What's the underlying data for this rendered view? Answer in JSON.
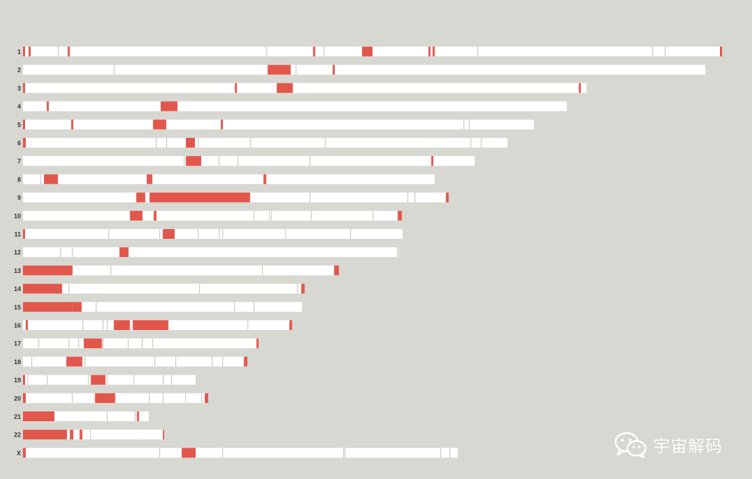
{
  "colors": {
    "background": "#d8d8d2",
    "chromosome": "#ffffff",
    "region": "#e2574c",
    "separator": "#c8c8c2",
    "label": "#333333"
  },
  "watermark": {
    "icon": "wechat-icon",
    "text": "宇宙解码"
  },
  "chart_data": {
    "type": "ideogram",
    "units": "fraction of the longest chromosome (1)",
    "chromosomes": [
      {
        "label": "1",
        "length": 1.0,
        "regions": [
          [
            0,
            0.003
          ],
          [
            0.008,
            0.011
          ],
          [
            0.064,
            0.067
          ],
          [
            0.415,
            0.418
          ],
          [
            0.485,
            0.5
          ],
          [
            0.58,
            0.583
          ],
          [
            0.586,
            0.589
          ],
          [
            0.997,
            1.0
          ]
        ],
        "separators": [
          0.05,
          0.348,
          0.43,
          0.65,
          0.9,
          0.918
        ]
      },
      {
        "label": "2",
        "length": 0.976,
        "regions": [
          [
            0.35,
            0.383
          ],
          [
            0.443,
            0.446
          ]
        ],
        "separators": [
          0.13,
          0.39
        ]
      },
      {
        "label": "3",
        "length": 0.806,
        "regions": [
          [
            0,
            0.003
          ],
          [
            0.303,
            0.306
          ],
          [
            0.363,
            0.386
          ],
          [
            0.795,
            0.798
          ]
        ],
        "separators": []
      },
      {
        "label": "4",
        "length": 0.778,
        "regions": [
          [
            0.034,
            0.037
          ],
          [
            0.197,
            0.221
          ]
        ],
        "separators": []
      },
      {
        "label": "5",
        "length": 0.731,
        "regions": [
          [
            0,
            0.003
          ],
          [
            0.069,
            0.072
          ],
          [
            0.186,
            0.205
          ],
          [
            0.283,
            0.286
          ]
        ],
        "separators": [
          0.63,
          0.638
        ]
      },
      {
        "label": "6",
        "length": 0.693,
        "regions": [
          [
            0,
            0.004
          ],
          [
            0.233,
            0.246
          ]
        ],
        "separators": [
          0.19,
          0.205,
          0.25,
          0.325,
          0.432,
          0.64,
          0.655
        ]
      },
      {
        "label": "7",
        "length": 0.646,
        "regions": [
          [
            0.233,
            0.255
          ],
          [
            0.584,
            0.587
          ]
        ],
        "separators": [
          0.23,
          0.28,
          0.307,
          0.41
        ]
      },
      {
        "label": "8",
        "length": 0.589,
        "regions": [
          [
            0.03,
            0.05
          ],
          [
            0.177,
            0.185
          ],
          [
            0.344,
            0.348
          ]
        ],
        "separators": [
          0.025
        ]
      },
      {
        "label": "9",
        "length": 0.607,
        "regions": [
          [
            0.162,
            0.175
          ],
          [
            0.181,
            0.325
          ],
          [
            0.605,
            0.609
          ]
        ],
        "separators": [
          0.41,
          0.55,
          0.56
        ]
      },
      {
        "label": "10",
        "length": 0.542,
        "regions": [
          [
            0.153,
            0.171
          ],
          [
            0.187,
            0.191
          ],
          [
            0.536,
            0.542
          ]
        ],
        "separators": [
          0.33,
          0.352,
          0.355,
          0.412,
          0.5
        ]
      },
      {
        "label": "11",
        "length": 0.543,
        "regions": [
          [
            0,
            0.003
          ],
          [
            0.2,
            0.217
          ]
        ],
        "separators": [
          0.122,
          0.195,
          0.25,
          0.28,
          0.285,
          0.375,
          0.468
        ]
      },
      {
        "label": "12",
        "length": 0.537,
        "regions": [
          [
            0.138,
            0.151
          ]
        ],
        "separators": [
          0.053,
          0.07,
          0.535
        ]
      },
      {
        "label": "13",
        "length": 0.452,
        "regions": [
          [
            0,
            0.071
          ],
          [
            0.445,
            0.452
          ]
        ],
        "separators": [
          0.125,
          0.342
        ]
      },
      {
        "label": "14",
        "length": 0.403,
        "regions": [
          [
            0,
            0.056
          ],
          [
            0.398,
            0.403
          ]
        ],
        "separators": [
          0.065,
          0.252,
          0.392
        ]
      },
      {
        "label": "15",
        "length": 0.399,
        "regions": [
          [
            0,
            0.071
          ],
          [
            0.071,
            0.084
          ]
        ],
        "separators": [
          0.104,
          0.302,
          0.33
        ]
      },
      {
        "label": "16",
        "length": 0.385,
        "regions": [
          [
            0.004,
            0.007
          ],
          [
            0.13,
            0.153
          ],
          [
            0.157,
            0.208
          ],
          [
            0.381,
            0.385
          ]
        ],
        "separators": [
          0.085,
          0.114,
          0.12,
          0.321
        ]
      },
      {
        "label": "17",
        "length": 0.337,
        "regions": [
          [
            0.087,
            0.113
          ],
          [
            0.334,
            0.337
          ]
        ],
        "separators": [
          0.022,
          0.065,
          0.079,
          0.114,
          0.15,
          0.17,
          0.185
        ]
      },
      {
        "label": "18",
        "length": 0.321,
        "regions": [
          [
            0.062,
            0.085
          ],
          [
            0.316,
            0.321
          ]
        ],
        "separators": [
          0.012,
          0.088,
          0.188,
          0.218,
          0.27,
          0.285
        ]
      },
      {
        "label": "19",
        "length": 0.247,
        "regions": [
          [
            0,
            0.003
          ],
          [
            0.097,
            0.118
          ]
        ],
        "separators": [
          0.006,
          0.034,
          0.093,
          0.12,
          0.158,
          0.2,
          0.212
        ]
      },
      {
        "label": "20",
        "length": 0.265,
        "regions": [
          [
            0,
            0.004
          ],
          [
            0.103,
            0.132
          ],
          [
            0.26,
            0.265
          ]
        ],
        "separators": [
          0.07,
          0.18,
          0.2,
          0.232,
          0.255
        ]
      },
      {
        "label": "21",
        "length": 0.18,
        "regions": [
          [
            0,
            0.045
          ],
          [
            0.163,
            0.166
          ]
        ],
        "separators": [
          0.12,
          0.16
        ]
      },
      {
        "label": "22",
        "length": 0.202,
        "regions": [
          [
            0,
            0.063
          ],
          [
            0.067,
            0.072
          ],
          [
            0.081,
            0.085
          ],
          [
            0.2,
            0.202
          ]
        ],
        "separators": [
          0.096
        ]
      },
      {
        "label": "X",
        "length": 0.622,
        "regions": [
          [
            0,
            0.004
          ],
          [
            0.227,
            0.247
          ]
        ],
        "separators": [
          0.195,
          0.285,
          0.458,
          0.46,
          0.597,
          0.61
        ]
      }
    ]
  }
}
